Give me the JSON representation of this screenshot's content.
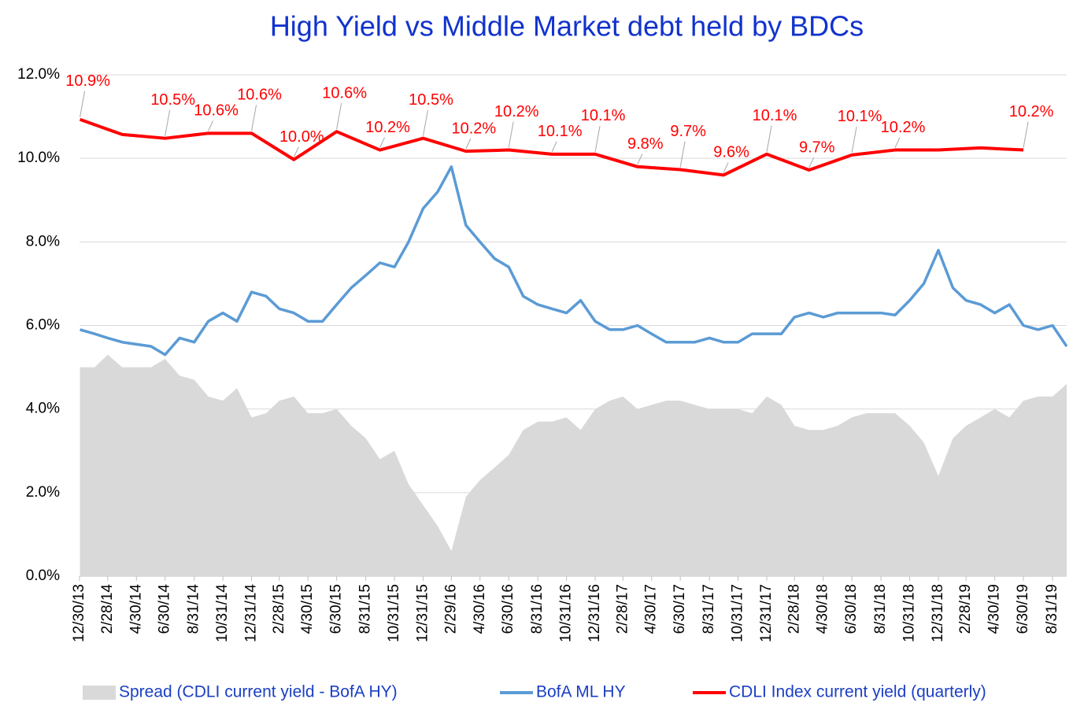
{
  "chart_data": {
    "type": "line",
    "title": "High Yield  vs  Middle Market debt held by BDCs",
    "xlim": [
      "12/30/13",
      "9/30/19"
    ],
    "xticks": [
      "12/30/13",
      "2/28/14",
      "4/30/14",
      "6/30/14",
      "8/31/14",
      "10/31/14",
      "12/31/14",
      "2/28/15",
      "4/30/15",
      "6/30/15",
      "8/31/15",
      "10/31/15",
      "12/31/15",
      "2/29/16",
      "4/30/16",
      "6/30/16",
      "8/31/16",
      "10/31/16",
      "12/31/16",
      "2/28/17",
      "4/30/17",
      "6/30/17",
      "8/31/17",
      "10/31/17",
      "12/31/17",
      "2/28/18",
      "4/30/18",
      "6/30/18",
      "8/31/18",
      "10/31/18",
      "12/31/18",
      "2/28/19",
      "4/30/19",
      "6/30/19",
      "8/31/19"
    ],
    "ylim": [
      0,
      12
    ],
    "yticks": [
      {
        "value": 0,
        "label": "0.0%"
      },
      {
        "value": 2,
        "label": "2.0%"
      },
      {
        "value": 4,
        "label": "4.0%"
      },
      {
        "value": 6,
        "label": "6.0%"
      },
      {
        "value": 8,
        "label": "8.0%"
      },
      {
        "value": 10,
        "label": "10.0%"
      },
      {
        "value": 12,
        "label": "12.0%"
      }
    ],
    "grid": true,
    "x": [
      "12/31/13",
      "1/31/14",
      "2/28/14",
      "3/31/14",
      "4/30/14",
      "5/31/14",
      "6/30/14",
      "7/31/14",
      "8/31/14",
      "9/30/14",
      "10/31/14",
      "11/30/14",
      "12/31/14",
      "1/31/15",
      "2/28/15",
      "3/31/15",
      "4/30/15",
      "5/31/15",
      "6/30/15",
      "7/31/15",
      "8/31/15",
      "9/30/15",
      "10/31/15",
      "11/30/15",
      "12/31/15",
      "1/31/16",
      "2/29/16",
      "3/31/16",
      "4/30/16",
      "5/31/16",
      "6/30/16",
      "7/31/16",
      "8/31/16",
      "9/30/16",
      "10/31/16",
      "11/30/16",
      "12/31/16",
      "1/31/17",
      "2/28/17",
      "3/31/17",
      "4/30/17",
      "5/31/17",
      "6/30/17",
      "7/31/17",
      "8/31/17",
      "9/30/17",
      "10/31/17",
      "11/30/17",
      "12/31/17",
      "1/31/18",
      "2/28/18",
      "3/31/18",
      "4/30/18",
      "5/31/18",
      "6/30/18",
      "7/31/18",
      "8/31/18",
      "9/30/18",
      "10/31/18",
      "11/30/18",
      "12/31/18",
      "1/31/19",
      "2/28/19",
      "3/31/19",
      "4/30/19",
      "5/31/19",
      "6/30/19",
      "7/31/19",
      "8/31/19",
      "9/30/19"
    ],
    "series": [
      {
        "name": "Spread (CDLI current yield - BofA HY)",
        "color": "#d9d9d9",
        "kind": "area",
        "values": [
          5.0,
          5.0,
          5.3,
          5.0,
          5.0,
          5.0,
          5.2,
          4.8,
          4.7,
          4.3,
          4.2,
          4.5,
          3.8,
          3.9,
          4.2,
          4.3,
          3.9,
          3.9,
          4.0,
          3.6,
          3.3,
          2.8,
          3.0,
          2.2,
          1.7,
          1.2,
          0.6,
          1.9,
          2.3,
          2.6,
          2.9,
          3.5,
          3.7,
          3.7,
          3.8,
          3.5,
          4.0,
          4.2,
          4.3,
          4.0,
          4.1,
          4.2,
          4.2,
          4.1,
          4.0,
          4.0,
          4.0,
          3.9,
          4.3,
          4.1,
          3.6,
          3.5,
          3.5,
          3.6,
          3.8,
          3.9,
          3.9,
          3.9,
          3.6,
          3.2,
          2.4,
          3.3,
          3.6,
          3.8,
          4.0,
          3.8,
          4.2,
          4.3,
          4.3,
          4.6
        ]
      },
      {
        "name": "BofA ML HY",
        "color": "#5b9bd5",
        "kind": "line",
        "values": [
          5.9,
          5.8,
          5.7,
          5.6,
          5.55,
          5.5,
          5.3,
          5.7,
          5.6,
          6.1,
          6.3,
          6.1,
          6.8,
          6.7,
          6.4,
          6.3,
          6.1,
          6.1,
          6.5,
          6.9,
          7.2,
          7.5,
          7.4,
          8.0,
          8.8,
          9.2,
          9.8,
          8.4,
          8.0,
          7.6,
          7.4,
          6.7,
          6.5,
          6.4,
          6.3,
          6.6,
          6.1,
          5.9,
          5.9,
          6.0,
          5.8,
          5.6,
          5.6,
          5.6,
          5.7,
          5.6,
          5.6,
          5.8,
          5.8,
          5.8,
          6.2,
          6.3,
          6.2,
          6.3,
          6.3,
          6.3,
          6.3,
          6.25,
          6.6,
          7.0,
          7.8,
          6.9,
          6.6,
          6.5,
          6.3,
          6.5,
          6.0,
          5.9,
          6.0,
          5.5
        ]
      },
      {
        "name": "CDLI Index current yield (quarterly)",
        "color": "#ff0000",
        "kind": "line",
        "x": [
          "12/31/13",
          "3/31/14",
          "6/30/14",
          "9/30/14",
          "12/31/14",
          "3/31/15",
          "6/30/15",
          "9/30/15",
          "12/31/15",
          "3/31/16",
          "6/30/16",
          "9/30/16",
          "12/31/16",
          "3/31/17",
          "6/30/17",
          "9/30/17",
          "12/31/17",
          "3/31/18",
          "6/30/18",
          "9/30/18",
          "12/31/18",
          "3/31/19",
          "6/30/19"
        ],
        "values": [
          10.93,
          10.57,
          10.48,
          10.6,
          10.6,
          9.97,
          10.64,
          10.2,
          10.48,
          10.17,
          10.2,
          10.1,
          10.1,
          9.8,
          9.73,
          9.6,
          10.1,
          9.72,
          10.08,
          10.2,
          10.2,
          10.25,
          10.2
        ],
        "value_labels": [
          "10.9%",
          null,
          "10.5%",
          "10.6%",
          "10.6%",
          "10.0%",
          "10.6%",
          "10.2%",
          "10.5%",
          "10.2%",
          "10.2%",
          "10.1%",
          "10.1%",
          "9.8%",
          "9.7%",
          "9.6%",
          "10.1%",
          "9.7%",
          "10.1%",
          "10.2%",
          null,
          null,
          "10.2%"
        ]
      }
    ]
  }
}
